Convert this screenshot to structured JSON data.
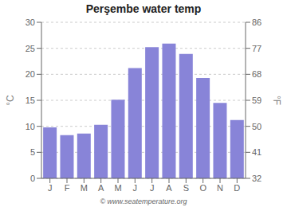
{
  "chart_data": {
    "type": "bar",
    "title": "Perşembe water temp",
    "categories": [
      "J",
      "F",
      "M",
      "A",
      "M",
      "J",
      "J",
      "A",
      "S",
      "O",
      "N",
      "D"
    ],
    "values": [
      9.8,
      8.3,
      8.6,
      10.3,
      15.1,
      21.2,
      25.2,
      25.9,
      23.9,
      19.3,
      14.5,
      11.2
    ],
    "ylim": [
      0,
      30
    ],
    "yticks": [
      0,
      5,
      10,
      15,
      20,
      25,
      30
    ],
    "ylabel": "°C",
    "y2lim": [
      32,
      86
    ],
    "y2ticks": [
      32,
      41,
      50,
      59,
      68,
      77,
      86
    ],
    "y2label": "°F",
    "grid": true,
    "annotations": [
      "© www.seatemperature.org"
    ]
  }
}
